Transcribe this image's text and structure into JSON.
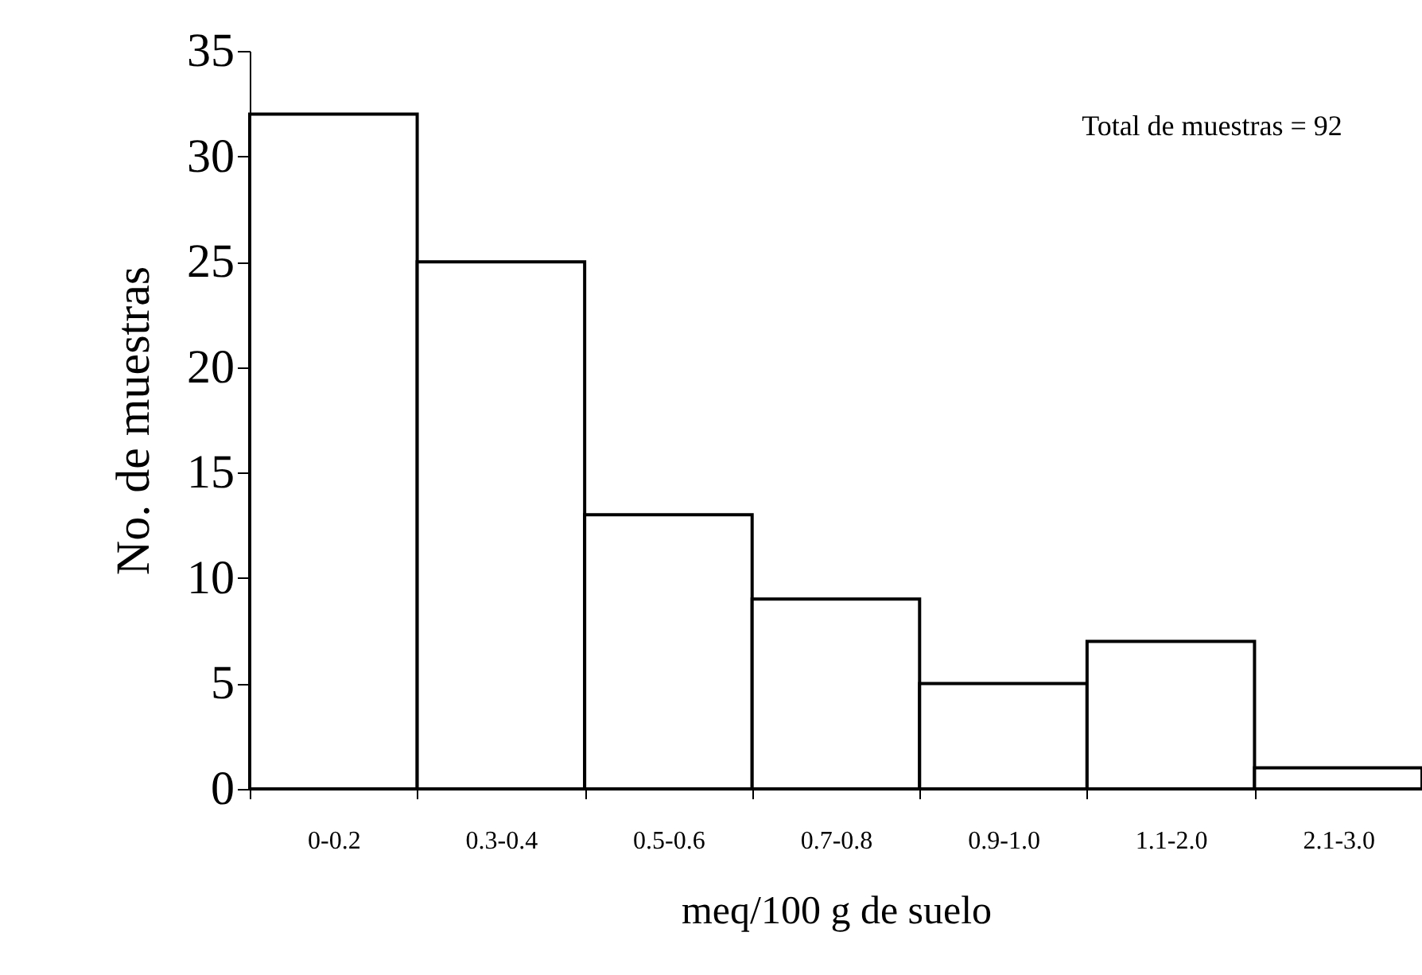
{
  "chart_data": {
    "type": "bar",
    "xlabel": "meq/100 g de suelo",
    "ylabel": "No. de muestras",
    "categories": [
      "0-0.2",
      "0.3-0.4",
      "0.5-0.6",
      "0.7-0.8",
      "0.9-1.0",
      "1.1-2.0",
      "2.1-3.0"
    ],
    "values": [
      32,
      25,
      13,
      9,
      5,
      7,
      1
    ],
    "color": "#ffffff",
    "ylim": [
      0,
      35
    ],
    "yticks": [
      0,
      5,
      10,
      15,
      20,
      25,
      30,
      35
    ],
    "annotations": [
      "Total de muestras = 92"
    ]
  }
}
